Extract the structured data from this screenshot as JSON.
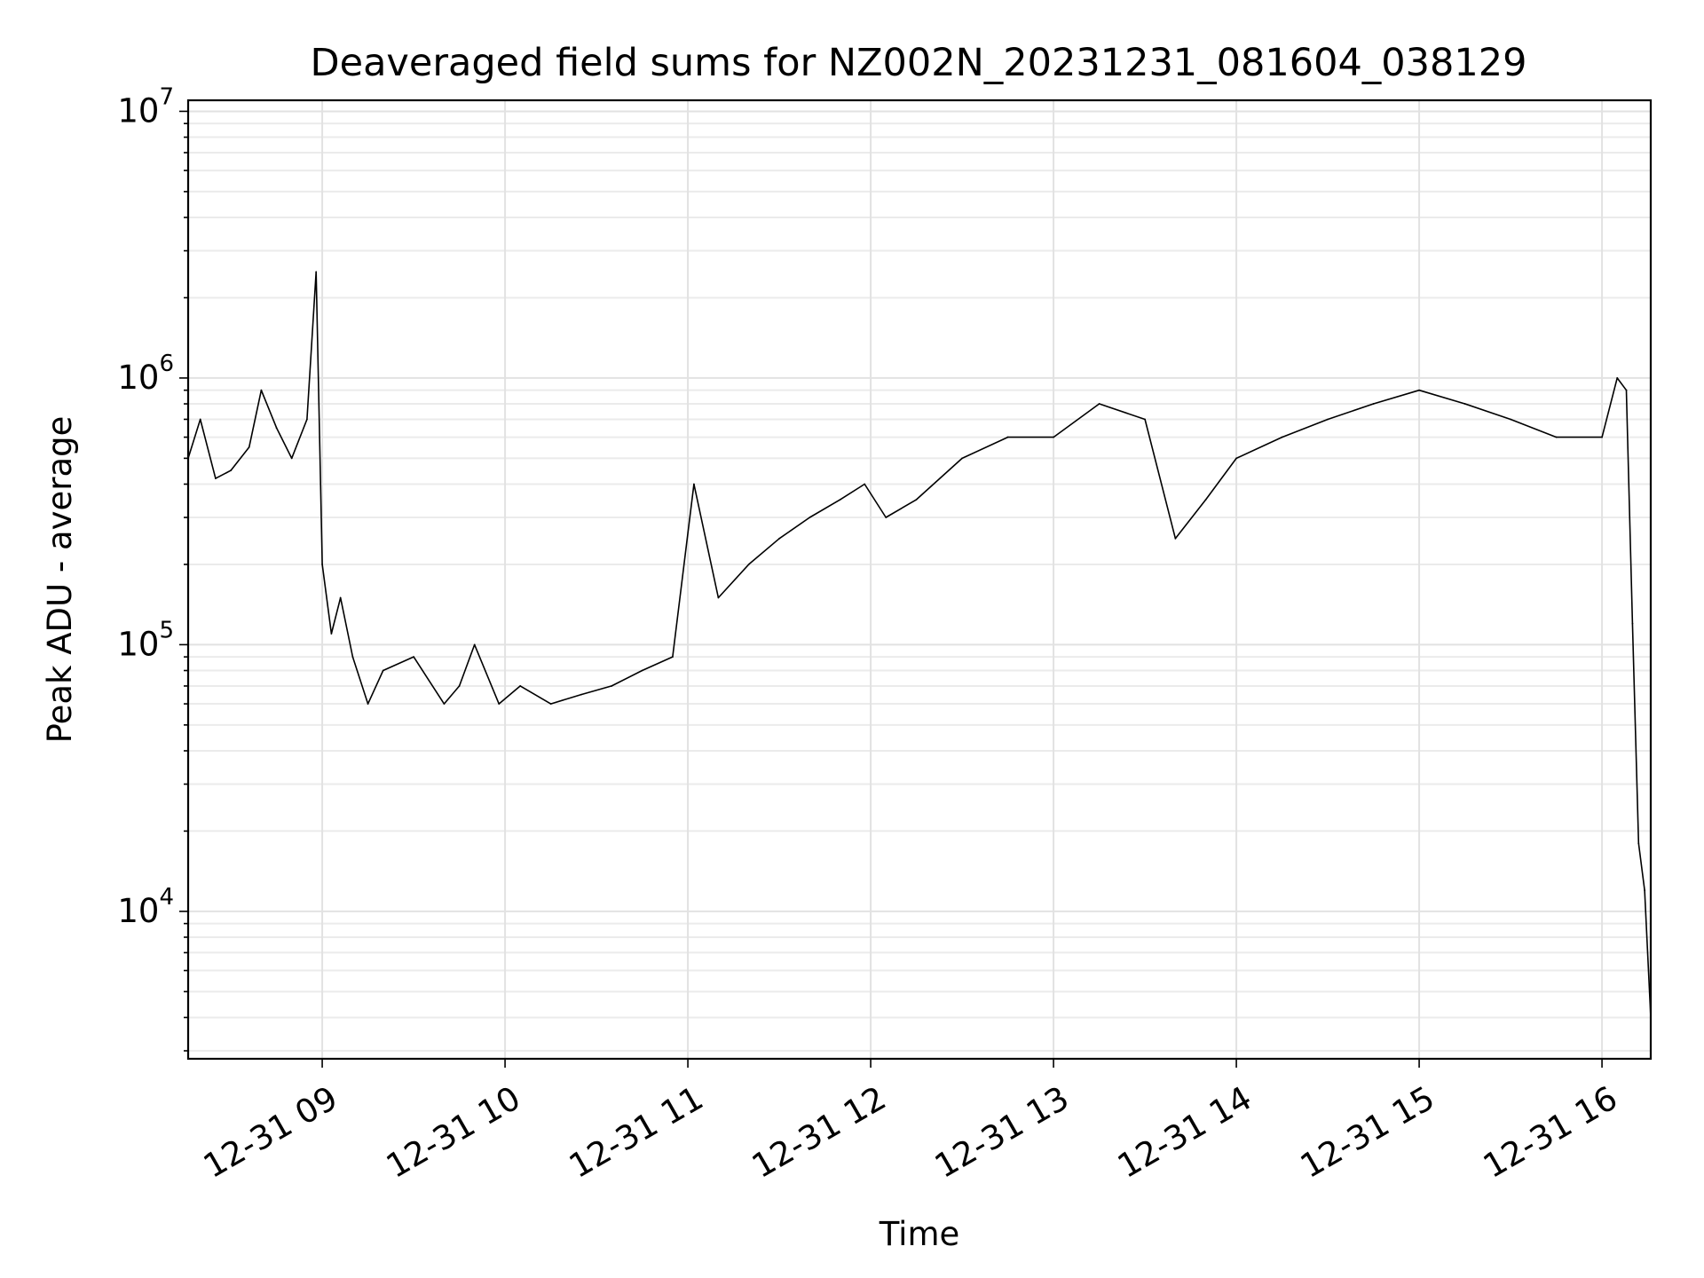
{
  "chart_data": {
    "type": "line",
    "title": "Deaveraged field sums for NZ002N_20231231_081604_038129",
    "xlabel": "Time",
    "ylabel": "Peak ADU - average",
    "y_scale": "log",
    "ylim": [
      2800,
      11000000
    ],
    "xlim": [
      "2023-12-31 08:16",
      "2023-12-31 16:16"
    ],
    "grid": true,
    "line_color": "#000000",
    "x_tick_labels": [
      "12-31 09",
      "12-31 10",
      "12-31 11",
      "12-31 12",
      "12-31 13",
      "12-31 14",
      "12-31 15",
      "12-31 16"
    ],
    "x_tick_times": [
      "2023-12-31 09:00",
      "2023-12-31 10:00",
      "2023-12-31 11:00",
      "2023-12-31 12:00",
      "2023-12-31 13:00",
      "2023-12-31 14:00",
      "2023-12-31 15:00",
      "2023-12-31 16:00"
    ],
    "y_tick_labels": [
      {
        "base": "10",
        "exp": "4",
        "value": 10000
      },
      {
        "base": "10",
        "exp": "5",
        "value": 100000
      },
      {
        "base": "10",
        "exp": "6",
        "value": 1000000
      },
      {
        "base": "10",
        "exp": "7",
        "value": 10000000
      }
    ],
    "series": [
      {
        "x": [
          "2023-12-31 08:16",
          "2023-12-31 08:20",
          "2023-12-31 08:25",
          "2023-12-31 08:30",
          "2023-12-31 08:36",
          "2023-12-31 08:40",
          "2023-12-31 08:45",
          "2023-12-31 08:50",
          "2023-12-31 08:55",
          "2023-12-31 08:58",
          "2023-12-31 09:00",
          "2023-12-31 09:03",
          "2023-12-31 09:06",
          "2023-12-31 09:10",
          "2023-12-31 09:15",
          "2023-12-31 09:20",
          "2023-12-31 09:30",
          "2023-12-31 09:40",
          "2023-12-31 09:45",
          "2023-12-31 09:50",
          "2023-12-31 09:58",
          "2023-12-31 10:05",
          "2023-12-31 10:15",
          "2023-12-31 10:25",
          "2023-12-31 10:35",
          "2023-12-31 10:45",
          "2023-12-31 10:55",
          "2023-12-31 11:02",
          "2023-12-31 11:10",
          "2023-12-31 11:20",
          "2023-12-31 11:30",
          "2023-12-31 11:40",
          "2023-12-31 11:50",
          "2023-12-31 11:58",
          "2023-12-31 12:05",
          "2023-12-31 12:15",
          "2023-12-31 12:30",
          "2023-12-31 12:45",
          "2023-12-31 13:00",
          "2023-12-31 13:15",
          "2023-12-31 13:30",
          "2023-12-31 13:40",
          "2023-12-31 13:50",
          "2023-12-31 14:00",
          "2023-12-31 14:15",
          "2023-12-31 14:30",
          "2023-12-31 14:45",
          "2023-12-31 15:00",
          "2023-12-31 15:15",
          "2023-12-31 15:30",
          "2023-12-31 15:45",
          "2023-12-31 16:00",
          "2023-12-31 16:05",
          "2023-12-31 16:08",
          "2023-12-31 16:10",
          "2023-12-31 16:12",
          "2023-12-31 16:14",
          "2023-12-31 16:16"
        ],
        "values": [
          500000,
          700000,
          420000,
          450000,
          550000,
          900000,
          650000,
          500000,
          700000,
          2500000,
          200000,
          110000,
          150000,
          90000,
          60000,
          80000,
          90000,
          60000,
          70000,
          100000,
          60000,
          70000,
          60000,
          65000,
          70000,
          80000,
          90000,
          400000,
          150000,
          200000,
          250000,
          300000,
          350000,
          400000,
          300000,
          350000,
          500000,
          600000,
          600000,
          800000,
          700000,
          250000,
          350000,
          500000,
          600000,
          700000,
          800000,
          900000,
          800000,
          700000,
          600000,
          600000,
          1000000,
          900000,
          120000,
          18000,
          12000,
          4000
        ]
      }
    ]
  }
}
